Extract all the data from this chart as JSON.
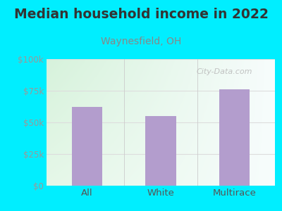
{
  "title": "Median household income in 2022",
  "subtitle": "Waynesfield, OH",
  "categories": [
    "All",
    "White",
    "Multirace"
  ],
  "values": [
    62000,
    55000,
    76000
  ],
  "bar_color": "#b39dcd",
  "background_outer": "#00eeff",
  "background_inner_colors": [
    "#d6f0d8",
    "#eef8ef",
    "#f5fdf5",
    "#f0f8ff"
  ],
  "yticks": [
    0,
    25000,
    50000,
    75000,
    100000
  ],
  "ytick_labels": [
    "$0",
    "$25k",
    "$50k",
    "$75k",
    "$100k"
  ],
  "ylim": [
    0,
    100000
  ],
  "xlim": [
    -0.55,
    2.55
  ],
  "title_fontsize": 13.5,
  "subtitle_fontsize": 10,
  "title_color": "#333333",
  "subtitle_color": "#888888",
  "tick_color": "#999999",
  "xtick_color": "#555555",
  "watermark": "City-Data.com",
  "watermark_color": "#b8b8b8",
  "grid_color": "#dddddd",
  "sep_color": "#cccccc"
}
